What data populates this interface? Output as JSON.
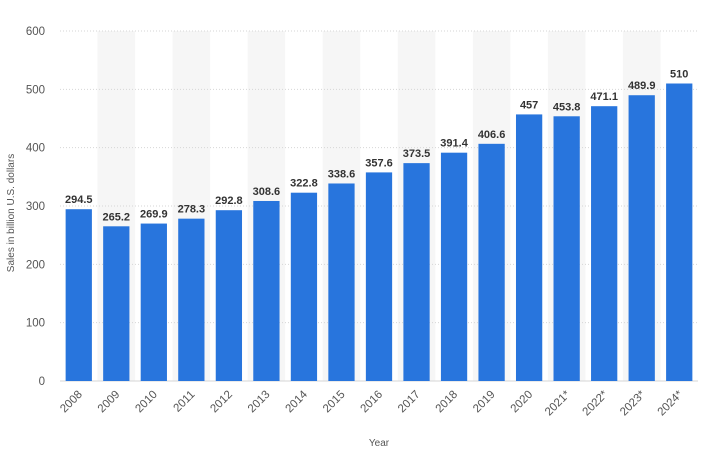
{
  "chart_data": {
    "type": "bar",
    "title": "",
    "xlabel": "Year",
    "ylabel": "Sales in billion U.S. dollars",
    "categories": [
      "2008",
      "2009",
      "2010",
      "2011",
      "2012",
      "2013",
      "2014",
      "2015",
      "2016",
      "2017",
      "2018",
      "2019",
      "2020",
      "2021*",
      "2022*",
      "2023*",
      "2024*"
    ],
    "values": [
      294.5,
      265.2,
      269.9,
      278.3,
      292.8,
      308.6,
      322.8,
      338.6,
      357.6,
      373.5,
      391.4,
      406.6,
      457,
      453.8,
      471.1,
      489.9,
      510
    ],
    "value_labels": [
      "294.5",
      "265.2",
      "269.9",
      "278.3",
      "292.8",
      "308.6",
      "322.8",
      "338.6",
      "357.6",
      "373.5",
      "391.4",
      "406.6",
      "457",
      "453.8",
      "471.1",
      "489.9",
      "510"
    ],
    "ylim": [
      0,
      600
    ],
    "yticks": [
      "0",
      "100",
      "200",
      "300",
      "400",
      "500",
      "600"
    ],
    "grid": true,
    "legend": "none",
    "bar_color": "#2875dd",
    "band_color": "#f6f6f6",
    "grid_color": "#d6d6d6"
  }
}
